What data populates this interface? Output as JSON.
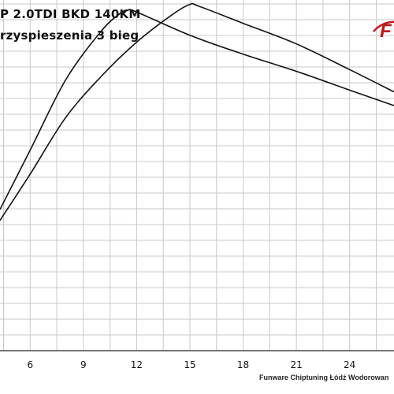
{
  "header": {
    "title_line1": "P 2.0TDI BKD 140KM",
    "title_line2": "rzyspieszenia 3 bieg"
  },
  "logo": {
    "text": "F",
    "icon": "funware-logo",
    "color": "#c0181b"
  },
  "footer": {
    "credit": "Funware Chiptuning Łódź Wodorowan"
  },
  "chart_data": {
    "type": "line",
    "xlim": [
      4.3,
      26.5
    ],
    "ylim": [
      0,
      1
    ],
    "x_ticks": [
      6,
      9,
      12,
      15,
      18,
      21,
      24
    ],
    "grid": true,
    "series": [
      {
        "points": [
          [
            4.3,
            0.412
          ],
          [
            6,
            0.585
          ],
          [
            8,
            0.79
          ],
          [
            10,
            0.932
          ],
          [
            11.1,
            0.985
          ],
          [
            11.5,
            0.993
          ],
          [
            12,
            0.988
          ],
          [
            15,
            0.92
          ],
          [
            18,
            0.865
          ],
          [
            21,
            0.815
          ],
          [
            24,
            0.76
          ],
          [
            26.5,
            0.715
          ]
        ]
      },
      {
        "points": [
          [
            4.3,
            0.38
          ],
          [
            6,
            0.515
          ],
          [
            8,
            0.68
          ],
          [
            10,
            0.8
          ],
          [
            12,
            0.9
          ],
          [
            14,
            0.98
          ],
          [
            15,
            1.01
          ],
          [
            15.5,
            1.005
          ],
          [
            18,
            0.955
          ],
          [
            21,
            0.895
          ],
          [
            24,
            0.82
          ],
          [
            26.5,
            0.755
          ]
        ]
      }
    ],
    "line_color": "#111111",
    "grid_color": "#c8c8c8"
  }
}
